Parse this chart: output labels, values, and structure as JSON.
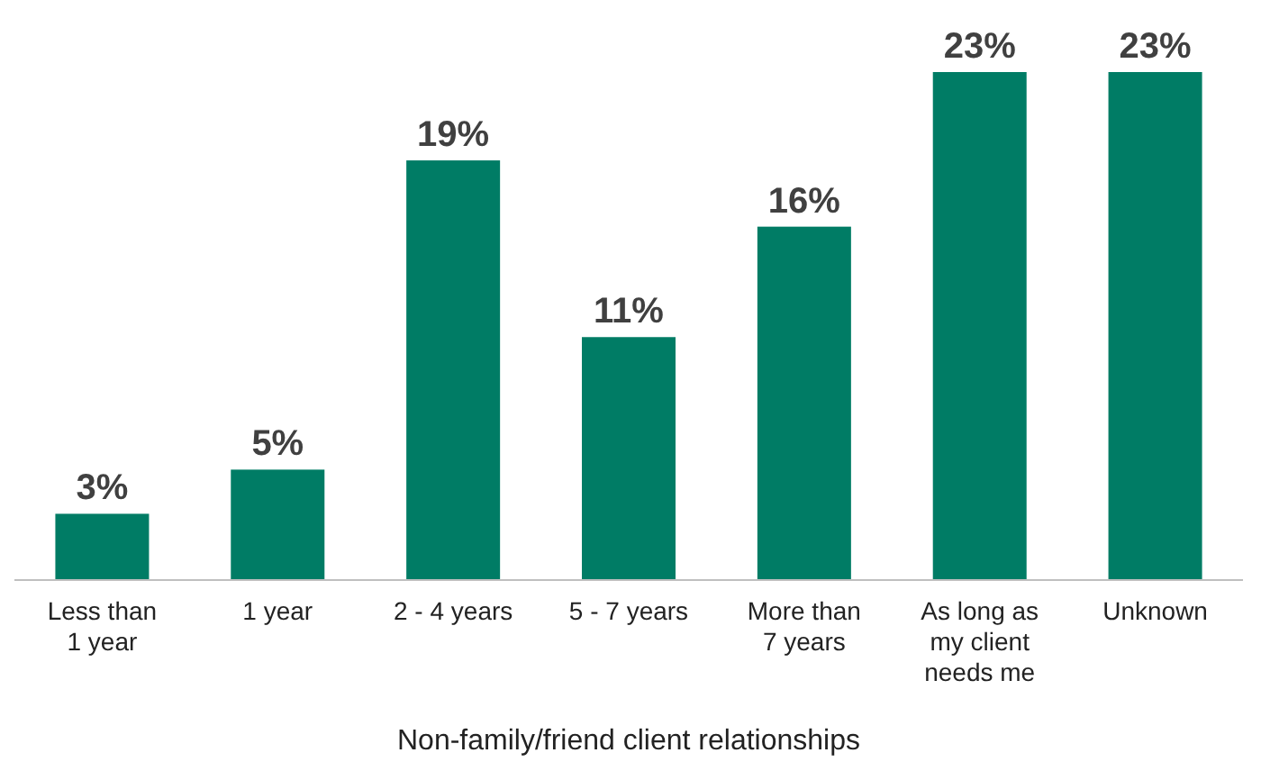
{
  "chart_data": {
    "type": "bar",
    "xlabel": "Non-family/friend client relationships",
    "categories": [
      "Less than 1 year",
      "1 year",
      "2 - 4 years",
      "5 - 7 years",
      "More than 7 years",
      "As long as my client needs me",
      "Unknown"
    ],
    "values": [
      3,
      5,
      19,
      11,
      16,
      23,
      23
    ],
    "value_labels": [
      "3%",
      "5%",
      "19%",
      "11%",
      "16%",
      "23%",
      "23%"
    ],
    "color": "#007c65"
  }
}
